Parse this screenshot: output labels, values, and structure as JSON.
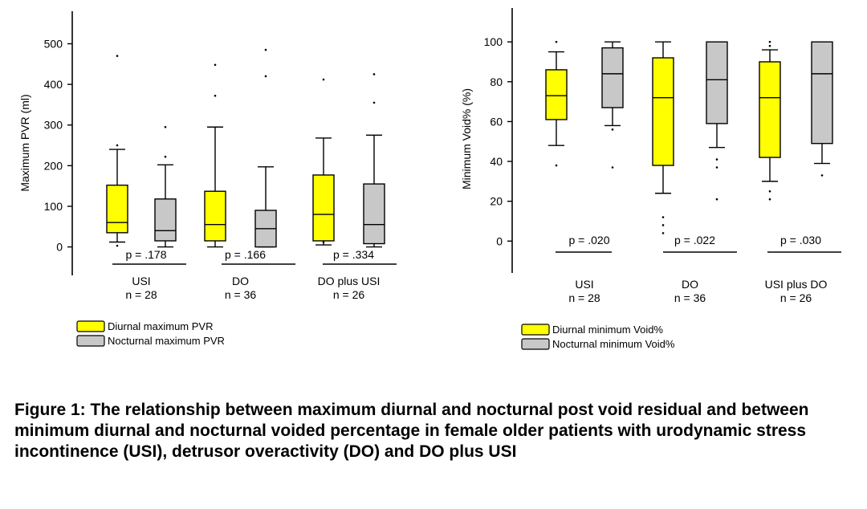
{
  "chart_data": [
    {
      "type": "box",
      "ylabel": "Maximum PVR (ml)",
      "ylim": [
        -70,
        580
      ],
      "yticks": [
        0,
        100,
        200,
        300,
        400,
        500
      ],
      "colors": {
        "diurnal": "#ffff00",
        "nocturnal": "#c8c8c8"
      },
      "legend": [
        "Diurnal maximum PVR",
        "Nocturnal maximum PVR"
      ],
      "groups": [
        {
          "label": "USI",
          "n_label": "n = 28",
          "p_label": "p = .178",
          "boxes": [
            {
              "series": "diurnal",
              "min": 12,
              "q1": 35,
              "median": 60,
              "q3": 152,
              "max": 240,
              "outliers": [
                470,
                250,
                3
              ]
            },
            {
              "series": "nocturnal",
              "min": 0,
              "q1": 15,
              "median": 40,
              "q3": 118,
              "max": 202,
              "outliers": [
                295,
                222
              ]
            }
          ]
        },
        {
          "label": "DO",
          "n_label": "n = 36",
          "p_label": "p = .166",
          "boxes": [
            {
              "series": "diurnal",
              "min": 0,
              "q1": 15,
              "median": 55,
              "q3": 137,
              "max": 295,
              "outliers": [
                448,
                372
              ]
            },
            {
              "series": "nocturnal",
              "min": 0,
              "q1": 0,
              "median": 45,
              "q3": 90,
              "max": 197,
              "outliers": [
                485,
                420
              ]
            }
          ]
        },
        {
          "label": "DO plus USI",
          "n_label": "n = 26",
          "p_label": "p = .334",
          "boxes": [
            {
              "series": "diurnal",
              "min": 5,
              "q1": 15,
              "median": 80,
              "q3": 177,
              "max": 268,
              "outliers": [
                412,
                12
              ]
            },
            {
              "series": "nocturnal",
              "min": 0,
              "q1": 8,
              "median": 55,
              "q3": 155,
              "max": 275,
              "outliers": [
                425,
                355
              ]
            }
          ]
        }
      ]
    },
    {
      "type": "box",
      "ylabel": "Minimum Void% (%)",
      "ylim": [
        -16,
        117
      ],
      "yticks": [
        0,
        20,
        40,
        60,
        80,
        100
      ],
      "colors": {
        "diurnal": "#ffff00",
        "nocturnal": "#c8c8c8"
      },
      "legend": [
        "Diurnal minimum Void%",
        "Nocturnal minimum Void%"
      ],
      "groups": [
        {
          "label": "USI",
          "n_label": "n = 28",
          "p_label": "p = .020",
          "boxes": [
            {
              "series": "diurnal",
              "min": 48,
              "q1": 61,
              "median": 73,
              "q3": 86,
              "max": 95,
              "outliers": [
                100,
                38
              ]
            },
            {
              "series": "nocturnal",
              "min": 58,
              "q1": 67,
              "median": 84,
              "q3": 97,
              "max": 100,
              "outliers": [
                56,
                37
              ]
            }
          ]
        },
        {
          "label": "DO",
          "n_label": "n = 36",
          "p_label": "p = .022",
          "boxes": [
            {
              "series": "diurnal",
              "min": 24,
              "q1": 38,
              "median": 72,
              "q3": 92,
              "max": 100,
              "outliers": [
                12,
                8,
                4
              ]
            },
            {
              "series": "nocturnal",
              "min": 47,
              "q1": 59,
              "median": 81,
              "q3": 100,
              "max": 100,
              "outliers": [
                41,
                37,
                21
              ]
            }
          ]
        },
        {
          "label": "USI plus DO",
          "n_label": "n = 26",
          "p_label": "p = .030",
          "boxes": [
            {
              "series": "diurnal",
              "min": 30,
              "q1": 42,
              "median": 72,
              "q3": 90,
              "max": 96,
              "outliers": [
                100,
                98,
                25,
                21
              ]
            },
            {
              "series": "nocturnal",
              "min": 39,
              "q1": 49,
              "median": 84,
              "q3": 100,
              "max": 100,
              "outliers": [
                33
              ]
            }
          ]
        }
      ]
    }
  ],
  "caption": "Figure 1: The relationship between maximum diurnal and nocturnal post void residual and between minimum diurnal and nocturnal voided percentage in female older patients with urodynamic stress incontinence (USI), detrusor overactivity (DO) and DO plus USI"
}
